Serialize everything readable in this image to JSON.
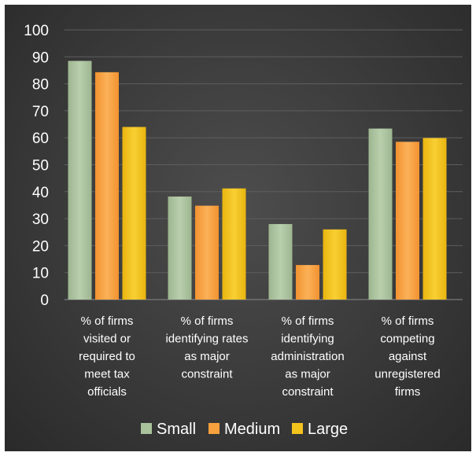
{
  "chart_data": {
    "type": "bar",
    "categories": [
      [
        "% of firms",
        "visited or",
        "required to",
        "meet tax",
        "officials"
      ],
      [
        "% of firms",
        "identifying rates",
        "as major",
        "constraint"
      ],
      [
        "% of firms",
        "identifying",
        "administration",
        "as major",
        "constraint"
      ],
      [
        "% of firms",
        "competing",
        "against",
        "unregistered",
        "firms"
      ]
    ],
    "series": [
      {
        "name": "Small",
        "values": [
          88.5,
          38.2,
          28.0,
          63.4
        ],
        "color": "#a9c29c"
      },
      {
        "name": "Medium",
        "values": [
          84.3,
          34.8,
          12.8,
          58.5
        ],
        "color": "#f7a13e"
      },
      {
        "name": "Large",
        "values": [
          64.0,
          41.2,
          26.0,
          59.9
        ],
        "color": "#f2c21d"
      }
    ],
    "y_ticks": [
      "0",
      "10",
      "20",
      "30",
      "40",
      "50",
      "60",
      "70",
      "80",
      "90",
      "100"
    ],
    "ylim": [
      0,
      100
    ],
    "grid": true,
    "legend": "bottom"
  }
}
